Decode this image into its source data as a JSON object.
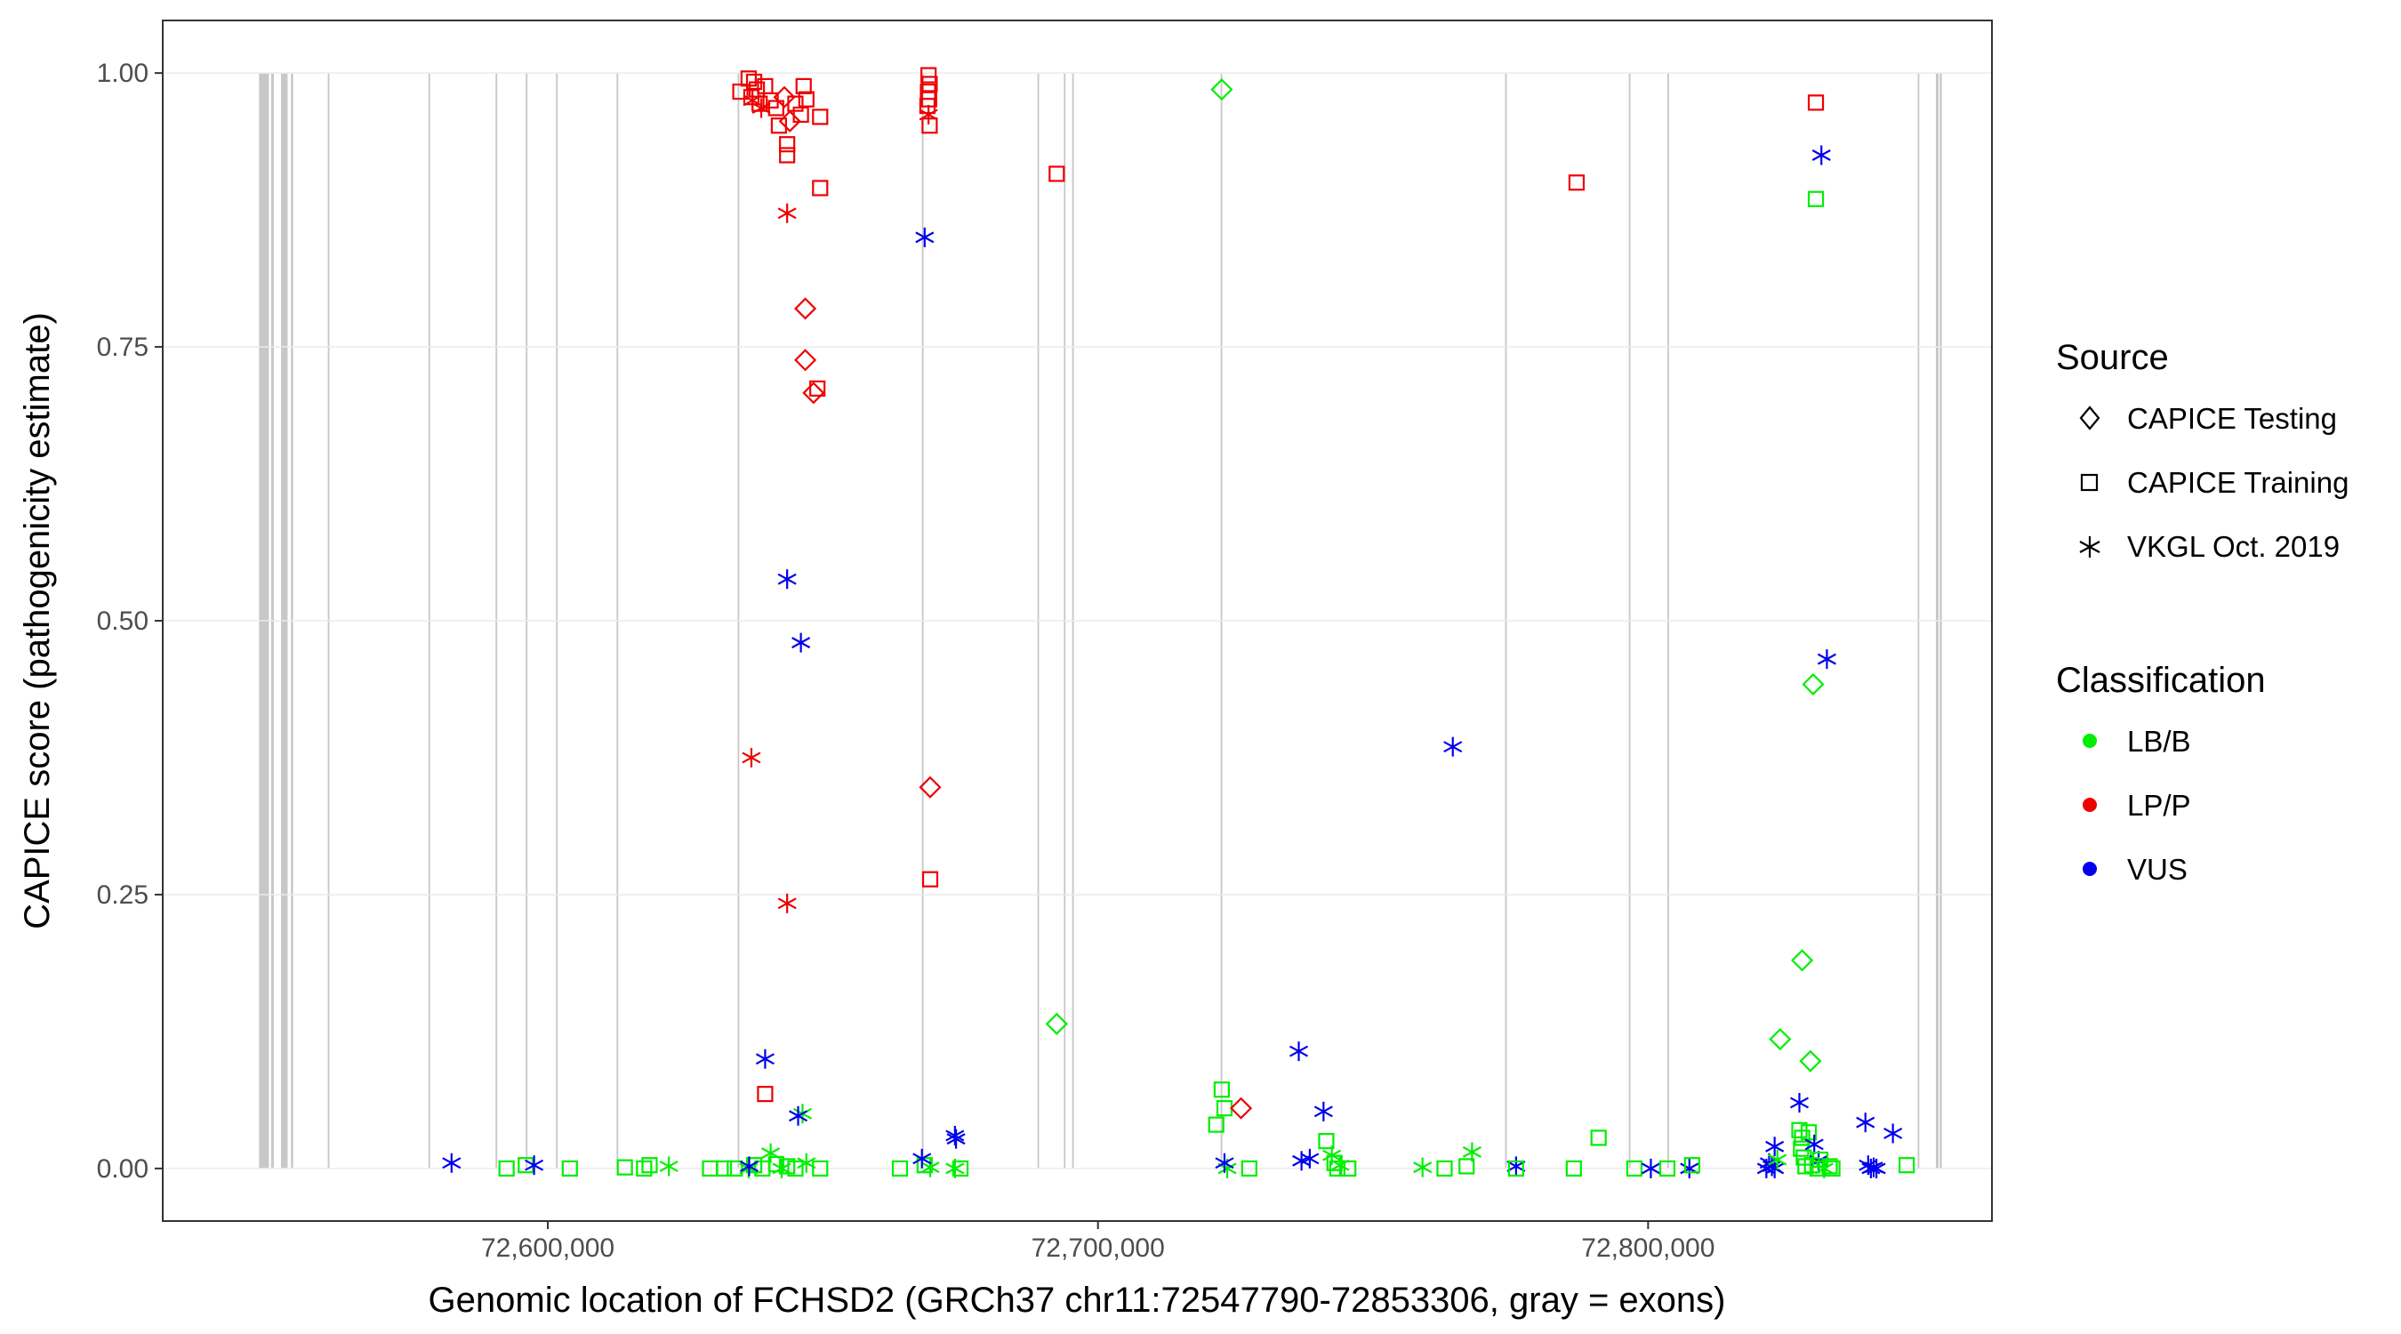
{
  "chart_data": {
    "type": "scatter",
    "xlabel": "Genomic location of FCHSD2 (GRCh37 chr11:72547790-72853306, gray = exons)",
    "ylabel": "CAPICE score (pathogenicity estimate)",
    "xlim": [
      72530000,
      72862500
    ],
    "ylim": [
      -0.048,
      1.048
    ],
    "x_ticks": [
      72600000,
      72700000,
      72800000
    ],
    "x_tick_labels": [
      "72,600,000",
      "72,700,000",
      "72,800,000"
    ],
    "y_ticks": [
      0,
      0.25,
      0.5,
      0.75,
      1.0
    ],
    "y_tick_labels": [
      "0.00",
      "0.25",
      "0.50",
      "0.75",
      "1.00"
    ],
    "exons": [
      [
        72547500,
        72549300
      ],
      [
        72549700,
        72550200
      ],
      [
        72551500,
        72552700
      ],
      [
        72553300,
        72553700
      ],
      [
        72560000,
        72560300
      ],
      [
        72578300,
        72578600
      ],
      [
        72590500,
        72590800
      ],
      [
        72596000,
        72596300
      ],
      [
        72601500,
        72601800
      ],
      [
        72612500,
        72612800
      ],
      [
        72634500,
        72634800
      ],
      [
        72668000,
        72668300
      ],
      [
        72689000,
        72689300
      ],
      [
        72693800,
        72694100
      ],
      [
        72695300,
        72695600
      ],
      [
        72722300,
        72722600
      ],
      [
        72774000,
        72774300
      ],
      [
        72796500,
        72796800
      ],
      [
        72803500,
        72803800
      ],
      [
        72849000,
        72849300
      ],
      [
        72852300,
        72852800
      ],
      [
        72853000,
        72853400
      ]
    ],
    "legend": {
      "source_title": "Source",
      "source_entries": [
        "CAPICE Testing",
        "CAPICE Training",
        "VKGL Oct. 2019"
      ],
      "class_title": "Classification",
      "class_entries": [
        "LB/B",
        "LP/P",
        "VUS"
      ]
    },
    "colors": {
      "LB/B": "#00ee00",
      "LP/P": "#ee0000",
      "VUS": "#0000ee",
      "exon": "#c8c8c8",
      "grid": "#ebebeb"
    },
    "points": [
      {
        "x": 72582500,
        "y": 0.005,
        "shape": "star",
        "class": "VUS"
      },
      {
        "x": 72592500,
        "y": 0.0,
        "shape": "square",
        "class": "LB/B"
      },
      {
        "x": 72596000,
        "y": 0.003,
        "shape": "square",
        "class": "LB/B"
      },
      {
        "x": 72597500,
        "y": 0.003,
        "shape": "star",
        "class": "VUS"
      },
      {
        "x": 72604000,
        "y": 0.0,
        "shape": "square",
        "class": "LB/B"
      },
      {
        "x": 72614000,
        "y": 0.001,
        "shape": "square",
        "class": "LB/B"
      },
      {
        "x": 72617500,
        "y": 0.0,
        "shape": "square",
        "class": "LB/B"
      },
      {
        "x": 72618500,
        "y": 0.003,
        "shape": "square",
        "class": "LB/B"
      },
      {
        "x": 72622000,
        "y": 0.002,
        "shape": "star",
        "class": "LB/B"
      },
      {
        "x": 72629500,
        "y": 0.0,
        "shape": "square",
        "class": "LB/B"
      },
      {
        "x": 72632000,
        "y": 0.0,
        "shape": "square",
        "class": "LB/B"
      },
      {
        "x": 72634000,
        "y": 0.0,
        "shape": "square",
        "class": "LB/B"
      },
      {
        "x": 72636500,
        "y": 0.0,
        "shape": "star",
        "class": "LB/B"
      },
      {
        "x": 72637500,
        "y": 0.003,
        "shape": "square",
        "class": "LB/B"
      },
      {
        "x": 72639000,
        "y": 0.0,
        "shape": "square",
        "class": "LB/B"
      },
      {
        "x": 72640500,
        "y": 0.014,
        "shape": "star",
        "class": "LB/B"
      },
      {
        "x": 72641500,
        "y": 0.004,
        "shape": "square",
        "class": "LB/B"
      },
      {
        "x": 72642500,
        "y": 0.0,
        "shape": "star",
        "class": "LB/B"
      },
      {
        "x": 72643500,
        "y": 0.002,
        "shape": "square",
        "class": "LB/B"
      },
      {
        "x": 72645000,
        "y": 0.0,
        "shape": "square",
        "class": "LB/B"
      },
      {
        "x": 72647000,
        "y": 0.005,
        "shape": "star",
        "class": "LB/B"
      },
      {
        "x": 72646300,
        "y": 0.05,
        "shape": "star",
        "class": "LB/B"
      },
      {
        "x": 72649500,
        "y": 0.0,
        "shape": "square",
        "class": "LB/B"
      },
      {
        "x": 72636600,
        "y": 0.002,
        "shape": "star",
        "class": "VUS"
      },
      {
        "x": 72639500,
        "y": 0.1,
        "shape": "star",
        "class": "VUS"
      },
      {
        "x": 72643500,
        "y": 0.538,
        "shape": "star",
        "class": "VUS"
      },
      {
        "x": 72646000,
        "y": 0.48,
        "shape": "star",
        "class": "VUS"
      },
      {
        "x": 72645500,
        "y": 0.048,
        "shape": "star",
        "class": "VUS"
      },
      {
        "x": 72637000,
        "y": 0.375,
        "shape": "star",
        "class": "LP/P"
      },
      {
        "x": 72643500,
        "y": 0.242,
        "shape": "star",
        "class": "LP/P"
      },
      {
        "x": 72643500,
        "y": 0.872,
        "shape": "star",
        "class": "LP/P"
      },
      {
        "x": 72639500,
        "y": 0.068,
        "shape": "square",
        "class": "LP/P"
      },
      {
        "x": 72646800,
        "y": 0.785,
        "shape": "diamond",
        "class": "LP/P"
      },
      {
        "x": 72646800,
        "y": 0.738,
        "shape": "diamond",
        "class": "LP/P"
      },
      {
        "x": 72649000,
        "y": 0.712,
        "shape": "square",
        "class": "LP/P"
      },
      {
        "x": 72648300,
        "y": 0.708,
        "shape": "diamond",
        "class": "LP/P"
      },
      {
        "x": 72649500,
        "y": 0.895,
        "shape": "square",
        "class": "LP/P"
      },
      {
        "x": 72635000,
        "y": 0.983,
        "shape": "square",
        "class": "LP/P"
      },
      {
        "x": 72636500,
        "y": 0.995,
        "shape": "square",
        "class": "LP/P"
      },
      {
        "x": 72637500,
        "y": 0.992,
        "shape": "square",
        "class": "LP/P"
      },
      {
        "x": 72637000,
        "y": 0.978,
        "shape": "square",
        "class": "LP/P"
      },
      {
        "x": 72638000,
        "y": 0.985,
        "shape": "square",
        "class": "LP/P"
      },
      {
        "x": 72638500,
        "y": 0.972,
        "shape": "square",
        "class": "LP/P"
      },
      {
        "x": 72639500,
        "y": 0.988,
        "shape": "square",
        "class": "LP/P"
      },
      {
        "x": 72640500,
        "y": 0.975,
        "shape": "square",
        "class": "LP/P"
      },
      {
        "x": 72641500,
        "y": 0.968,
        "shape": "square",
        "class": "LP/P"
      },
      {
        "x": 72642000,
        "y": 0.952,
        "shape": "square",
        "class": "LP/P"
      },
      {
        "x": 72643000,
        "y": 0.978,
        "shape": "diamond",
        "class": "LP/P"
      },
      {
        "x": 72644000,
        "y": 0.956,
        "shape": "diamond",
        "class": "LP/P"
      },
      {
        "x": 72645000,
        "y": 0.972,
        "shape": "square",
        "class": "LP/P"
      },
      {
        "x": 72646000,
        "y": 0.962,
        "shape": "square",
        "class": "LP/P"
      },
      {
        "x": 72646500,
        "y": 0.988,
        "shape": "square",
        "class": "LP/P"
      },
      {
        "x": 72647000,
        "y": 0.976,
        "shape": "square",
        "class": "LP/P"
      },
      {
        "x": 72637200,
        "y": 0.975,
        "shape": "star",
        "class": "LP/P"
      },
      {
        "x": 72638800,
        "y": 0.968,
        "shape": "star",
        "class": "LP/P"
      },
      {
        "x": 72643500,
        "y": 0.935,
        "shape": "square",
        "class": "LP/P"
      },
      {
        "x": 72643500,
        "y": 0.925,
        "shape": "square",
        "class": "LP/P"
      },
      {
        "x": 72649500,
        "y": 0.96,
        "shape": "square",
        "class": "LP/P"
      },
      {
        "x": 72664000,
        "y": 0.0,
        "shape": "square",
        "class": "LB/B"
      },
      {
        "x": 72668500,
        "y": 0.003,
        "shape": "square",
        "class": "LB/B"
      },
      {
        "x": 72669500,
        "y": 0.001,
        "shape": "star",
        "class": "LB/B"
      },
      {
        "x": 72674000,
        "y": 0.0,
        "shape": "star",
        "class": "LB/B"
      },
      {
        "x": 72675000,
        "y": 0.0,
        "shape": "square",
        "class": "LB/B"
      },
      {
        "x": 72668000,
        "y": 0.009,
        "shape": "star",
        "class": "VUS"
      },
      {
        "x": 72668500,
        "y": 0.85,
        "shape": "star",
        "class": "VUS"
      },
      {
        "x": 72674000,
        "y": 0.03,
        "shape": "star",
        "class": "VUS"
      },
      {
        "x": 72674200,
        "y": 0.027,
        "shape": "star",
        "class": "VUS"
      },
      {
        "x": 72669500,
        "y": 0.348,
        "shape": "diamond",
        "class": "LP/P"
      },
      {
        "x": 72669500,
        "y": 0.264,
        "shape": "square",
        "class": "LP/P"
      },
      {
        "x": 72669200,
        "y": 0.998,
        "shape": "square",
        "class": "LP/P"
      },
      {
        "x": 72669400,
        "y": 0.99,
        "shape": "square",
        "class": "LP/P"
      },
      {
        "x": 72669100,
        "y": 0.983,
        "shape": "square",
        "class": "LP/P"
      },
      {
        "x": 72669300,
        "y": 0.976,
        "shape": "square",
        "class": "LP/P"
      },
      {
        "x": 72669000,
        "y": 0.97,
        "shape": "square",
        "class": "LP/P"
      },
      {
        "x": 72669200,
        "y": 0.962,
        "shape": "star",
        "class": "LP/P"
      },
      {
        "x": 72669400,
        "y": 0.952,
        "shape": "square",
        "class": "LP/P"
      },
      {
        "x": 72692500,
        "y": 0.908,
        "shape": "square",
        "class": "LP/P"
      },
      {
        "x": 72692500,
        "y": 0.132,
        "shape": "diamond",
        "class": "LB/B"
      },
      {
        "x": 72722500,
        "y": 0.985,
        "shape": "diamond",
        "class": "LB/B"
      },
      {
        "x": 72721500,
        "y": 0.04,
        "shape": "square",
        "class": "LB/B"
      },
      {
        "x": 72722500,
        "y": 0.072,
        "shape": "square",
        "class": "LB/B"
      },
      {
        "x": 72723000,
        "y": 0.055,
        "shape": "square",
        "class": "LB/B"
      },
      {
        "x": 72723500,
        "y": 0.0,
        "shape": "star",
        "class": "LB/B"
      },
      {
        "x": 72727500,
        "y": 0.0,
        "shape": "square",
        "class": "LB/B"
      },
      {
        "x": 72723000,
        "y": 0.005,
        "shape": "star",
        "class": "VUS"
      },
      {
        "x": 72726000,
        "y": 0.055,
        "shape": "diamond",
        "class": "LP/P"
      },
      {
        "x": 72736500,
        "y": 0.107,
        "shape": "star",
        "class": "VUS"
      },
      {
        "x": 72737000,
        "y": 0.007,
        "shape": "star",
        "class": "VUS"
      },
      {
        "x": 72738500,
        "y": 0.009,
        "shape": "star",
        "class": "VUS"
      },
      {
        "x": 72741000,
        "y": 0.052,
        "shape": "star",
        "class": "VUS"
      },
      {
        "x": 72741500,
        "y": 0.025,
        "shape": "square",
        "class": "LB/B"
      },
      {
        "x": 72742500,
        "y": 0.012,
        "shape": "star",
        "class": "LB/B"
      },
      {
        "x": 72743000,
        "y": 0.005,
        "shape": "square",
        "class": "LB/B"
      },
      {
        "x": 72743500,
        "y": 0.0,
        "shape": "square",
        "class": "LB/B"
      },
      {
        "x": 72745500,
        "y": 0.0,
        "shape": "square",
        "class": "LB/B"
      },
      {
        "x": 72744000,
        "y": 0.003,
        "shape": "star",
        "class": "LB/B"
      },
      {
        "x": 72759000,
        "y": 0.001,
        "shape": "star",
        "class": "LB/B"
      },
      {
        "x": 72763000,
        "y": 0.0,
        "shape": "square",
        "class": "LB/B"
      },
      {
        "x": 72764500,
        "y": 0.385,
        "shape": "star",
        "class": "VUS"
      },
      {
        "x": 72767000,
        "y": 0.002,
        "shape": "square",
        "class": "LB/B"
      },
      {
        "x": 72768000,
        "y": 0.015,
        "shape": "star",
        "class": "LB/B"
      },
      {
        "x": 72776000,
        "y": 0.002,
        "shape": "star",
        "class": "VUS"
      },
      {
        "x": 72776000,
        "y": 0.0,
        "shape": "square",
        "class": "LB/B"
      },
      {
        "x": 72786500,
        "y": 0.0,
        "shape": "square",
        "class": "LB/B"
      },
      {
        "x": 72787000,
        "y": 0.9,
        "shape": "square",
        "class": "LP/P"
      },
      {
        "x": 72791000,
        "y": 0.028,
        "shape": "square",
        "class": "LB/B"
      },
      {
        "x": 72797500,
        "y": 0.0,
        "shape": "square",
        "class": "LB/B"
      },
      {
        "x": 72800500,
        "y": 0.0,
        "shape": "star",
        "class": "VUS"
      },
      {
        "x": 72803500,
        "y": 0.0,
        "shape": "square",
        "class": "LB/B"
      },
      {
        "x": 72807500,
        "y": 0.0,
        "shape": "star",
        "class": "VUS"
      },
      {
        "x": 72808000,
        "y": 0.003,
        "shape": "square",
        "class": "LB/B"
      },
      {
        "x": 72821500,
        "y": 0.0,
        "shape": "star",
        "class": "VUS"
      },
      {
        "x": 72822000,
        "y": 0.005,
        "shape": "star",
        "class": "VUS"
      },
      {
        "x": 72822500,
        "y": 0.002,
        "shape": "star",
        "class": "VUS"
      },
      {
        "x": 72823000,
        "y": 0.0,
        "shape": "star",
        "class": "VUS"
      },
      {
        "x": 72823000,
        "y": 0.02,
        "shape": "star",
        "class": "VUS"
      },
      {
        "x": 72824000,
        "y": 0.118,
        "shape": "diamond",
        "class": "LB/B"
      },
      {
        "x": 72823500,
        "y": 0.008,
        "shape": "star",
        "class": "LB/B"
      },
      {
        "x": 72827500,
        "y": 0.06,
        "shape": "star",
        "class": "VUS"
      },
      {
        "x": 72828000,
        "y": 0.19,
        "shape": "diamond",
        "class": "LB/B"
      },
      {
        "x": 72827500,
        "y": 0.035,
        "shape": "square",
        "class": "LB/B"
      },
      {
        "x": 72828000,
        "y": 0.028,
        "shape": "square",
        "class": "LB/B"
      },
      {
        "x": 72827800,
        "y": 0.018,
        "shape": "square",
        "class": "LB/B"
      },
      {
        "x": 72828300,
        "y": 0.01,
        "shape": "square",
        "class": "LB/B"
      },
      {
        "x": 72828600,
        "y": 0.002,
        "shape": "square",
        "class": "LB/B"
      },
      {
        "x": 72829200,
        "y": 0.033,
        "shape": "square",
        "class": "LB/B"
      },
      {
        "x": 72829500,
        "y": 0.098,
        "shape": "diamond",
        "class": "LB/B"
      },
      {
        "x": 72830000,
        "y": 0.442,
        "shape": "diamond",
        "class": "LB/B"
      },
      {
        "x": 72830500,
        "y": 0.885,
        "shape": "square",
        "class": "LB/B"
      },
      {
        "x": 72830500,
        "y": 0.973,
        "shape": "square",
        "class": "LP/P"
      },
      {
        "x": 72831500,
        "y": 0.925,
        "shape": "star",
        "class": "VUS"
      },
      {
        "x": 72832500,
        "y": 0.465,
        "shape": "star",
        "class": "VUS"
      },
      {
        "x": 72830200,
        "y": 0.022,
        "shape": "star",
        "class": "VUS"
      },
      {
        "x": 72831000,
        "y": 0.007,
        "shape": "star",
        "class": "VUS"
      },
      {
        "x": 72829800,
        "y": 0.003,
        "shape": "square",
        "class": "LB/B"
      },
      {
        "x": 72830800,
        "y": 0.0,
        "shape": "square",
        "class": "LB/B"
      },
      {
        "x": 72831300,
        "y": 0.008,
        "shape": "square",
        "class": "LB/B"
      },
      {
        "x": 72832000,
        "y": 0.0,
        "shape": "star",
        "class": "LB/B"
      },
      {
        "x": 72833000,
        "y": 0.002,
        "shape": "square",
        "class": "LB/B"
      },
      {
        "x": 72833500,
        "y": 0.0,
        "shape": "square",
        "class": "LB/B"
      },
      {
        "x": 72839500,
        "y": 0.042,
        "shape": "star",
        "class": "VUS"
      },
      {
        "x": 72840000,
        "y": 0.003,
        "shape": "star",
        "class": "VUS"
      },
      {
        "x": 72840500,
        "y": 0.0,
        "shape": "star",
        "class": "VUS"
      },
      {
        "x": 72841000,
        "y": 0.001,
        "shape": "star",
        "class": "VUS"
      },
      {
        "x": 72841500,
        "y": 0.0,
        "shape": "star",
        "class": "VUS"
      },
      {
        "x": 72844500,
        "y": 0.032,
        "shape": "star",
        "class": "VUS"
      },
      {
        "x": 72847000,
        "y": 0.003,
        "shape": "square",
        "class": "LB/B"
      }
    ]
  }
}
